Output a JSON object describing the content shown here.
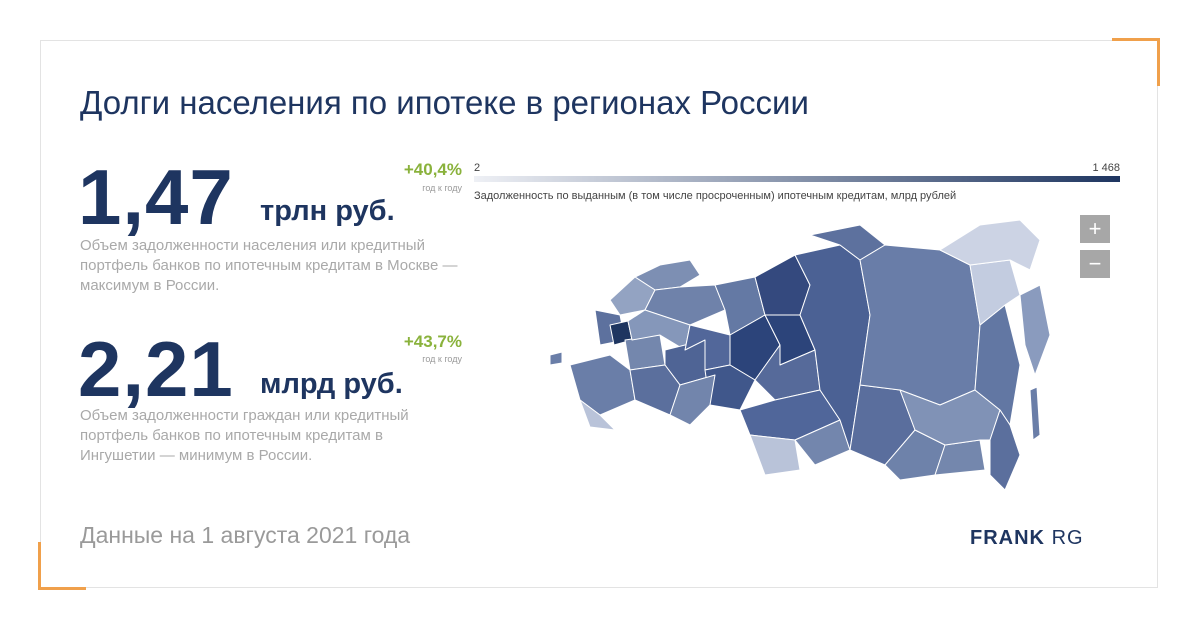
{
  "title": "Долги населения по ипотеке в регионах России",
  "stats": [
    {
      "value": "1,47",
      "unit": "трлн руб.",
      "growth": "+40,4%",
      "growth_note": "год к году",
      "description": "Объем задолженности населения или кредитный портфель банков по ипотечным кредитам в Москве — максимум в России."
    },
    {
      "value": "2,21",
      "unit": "млрд руб.",
      "growth": "+43,7%",
      "growth_note": "год к году",
      "description": "Объем задолженности граждан или кредитный портфель банков по ипотечным кредитам в Ингушетии — минимум в России."
    }
  ],
  "map": {
    "scale_min": "2",
    "scale_max": "1 468",
    "caption": "Задолженность по выданным (в том числе просроченным) ипотечным кредитам, млрд рублей",
    "zoom_in": "+",
    "zoom_out": "−",
    "color_low": "#eef0f5",
    "color_high": "#1e3560"
  },
  "footer": {
    "date": "Данные на 1 августа 2021 года",
    "logo_bold": "FRANK",
    "logo_light": "RG"
  },
  "colors": {
    "accent": "#f0a04b",
    "navy": "#1e3560",
    "growth": "#8ab23c"
  }
}
